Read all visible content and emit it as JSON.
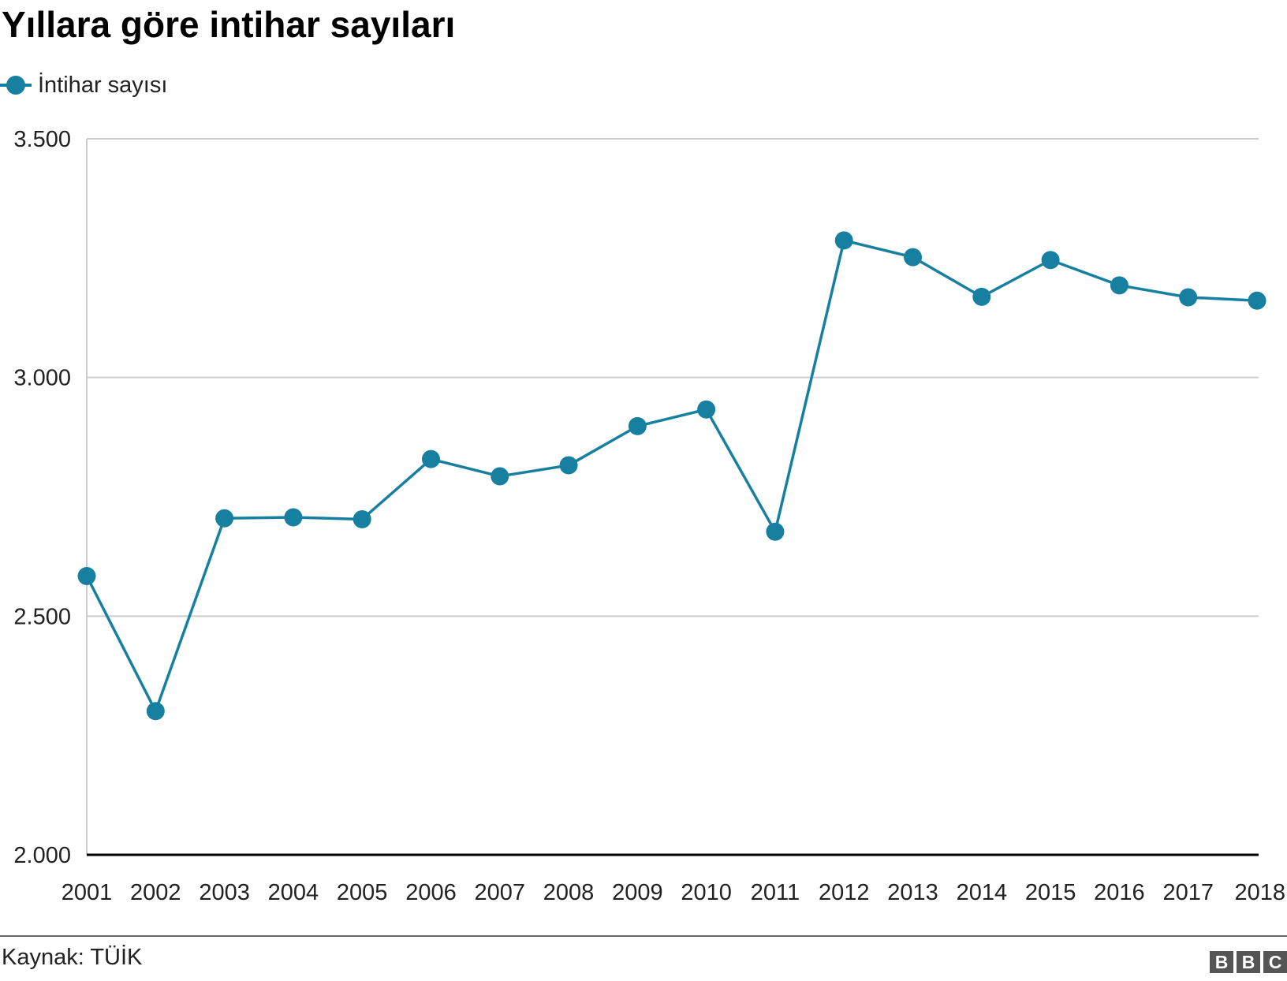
{
  "header": {
    "title": "Yıllara göre intihar sayıları"
  },
  "legend": {
    "label": "İntihar sayısı"
  },
  "footer": {
    "source": "Kaynak: TÜİK",
    "logo_letters": [
      "B",
      "B",
      "C"
    ]
  },
  "colors": {
    "series": "#1780a1",
    "grid": "#cccccc",
    "baseline": "#000000",
    "text": "#222222"
  },
  "chart_data": {
    "type": "line",
    "title": "Yıllara göre intihar sayıları",
    "xlabel": "",
    "ylabel": "",
    "x": [
      "2001",
      "2002",
      "2003",
      "2004",
      "2005",
      "2006",
      "2007",
      "2008",
      "2009",
      "2010",
      "2011",
      "2012",
      "2013",
      "2014",
      "2015",
      "2016",
      "2017",
      "2018"
    ],
    "series": [
      {
        "name": "İntihar sayısı",
        "values": [
          2584,
          2301,
          2705,
          2707,
          2703,
          2829,
          2793,
          2816,
          2898,
          2933,
          2677,
          3287,
          3252,
          3169,
          3246,
          3193,
          3168,
          3161
        ]
      }
    ],
    "ylim": [
      2000,
      3500
    ],
    "yticks": [
      2000,
      2500,
      3000,
      3500
    ],
    "ytick_labels": [
      "2.000",
      "2.500",
      "3.000",
      "3.500"
    ],
    "grid": true,
    "legend_position": "top-left",
    "source": "Kaynak: TÜİK"
  }
}
